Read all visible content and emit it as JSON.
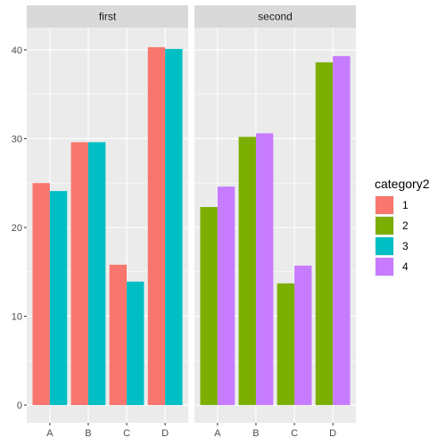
{
  "chart_data": {
    "type": "bar",
    "layout": "faceted-dodged",
    "facets": [
      {
        "label": "first",
        "categories": [
          "A",
          "B",
          "C",
          "D"
        ],
        "series": [
          {
            "name": "1",
            "values": [
              25.0,
              29.6,
              15.8,
              40.3
            ]
          },
          {
            "name": "3",
            "values": [
              24.1,
              29.6,
              13.9,
              40.1
            ]
          }
        ]
      },
      {
        "label": "second",
        "categories": [
          "A",
          "B",
          "C",
          "D"
        ],
        "series": [
          {
            "name": "2",
            "values": [
              22.3,
              30.2,
              13.7,
              38.6
            ]
          },
          {
            "name": "4",
            "values": [
              24.6,
              30.6,
              15.7,
              39.3
            ]
          }
        ]
      }
    ],
    "ylim": [
      -2,
      42.5
    ],
    "yticks": [
      0,
      10,
      20,
      30,
      40
    ],
    "grid": true,
    "legend": {
      "title": "category2",
      "placement": "right",
      "entries": [
        {
          "label": "1",
          "color": "#F8766D"
        },
        {
          "label": "2",
          "color": "#7CAE00"
        },
        {
          "label": "3",
          "color": "#00BFC4"
        },
        {
          "label": "4",
          "color": "#C77CFF"
        }
      ]
    },
    "title": "",
    "xlabel": "",
    "ylabel": ""
  },
  "colors": {
    "panel_bg": "#EBEBEB",
    "strip_bg": "#D9D9D9",
    "grid_major": "#FFFFFF",
    "grid_minor": "#F5F5F5"
  }
}
